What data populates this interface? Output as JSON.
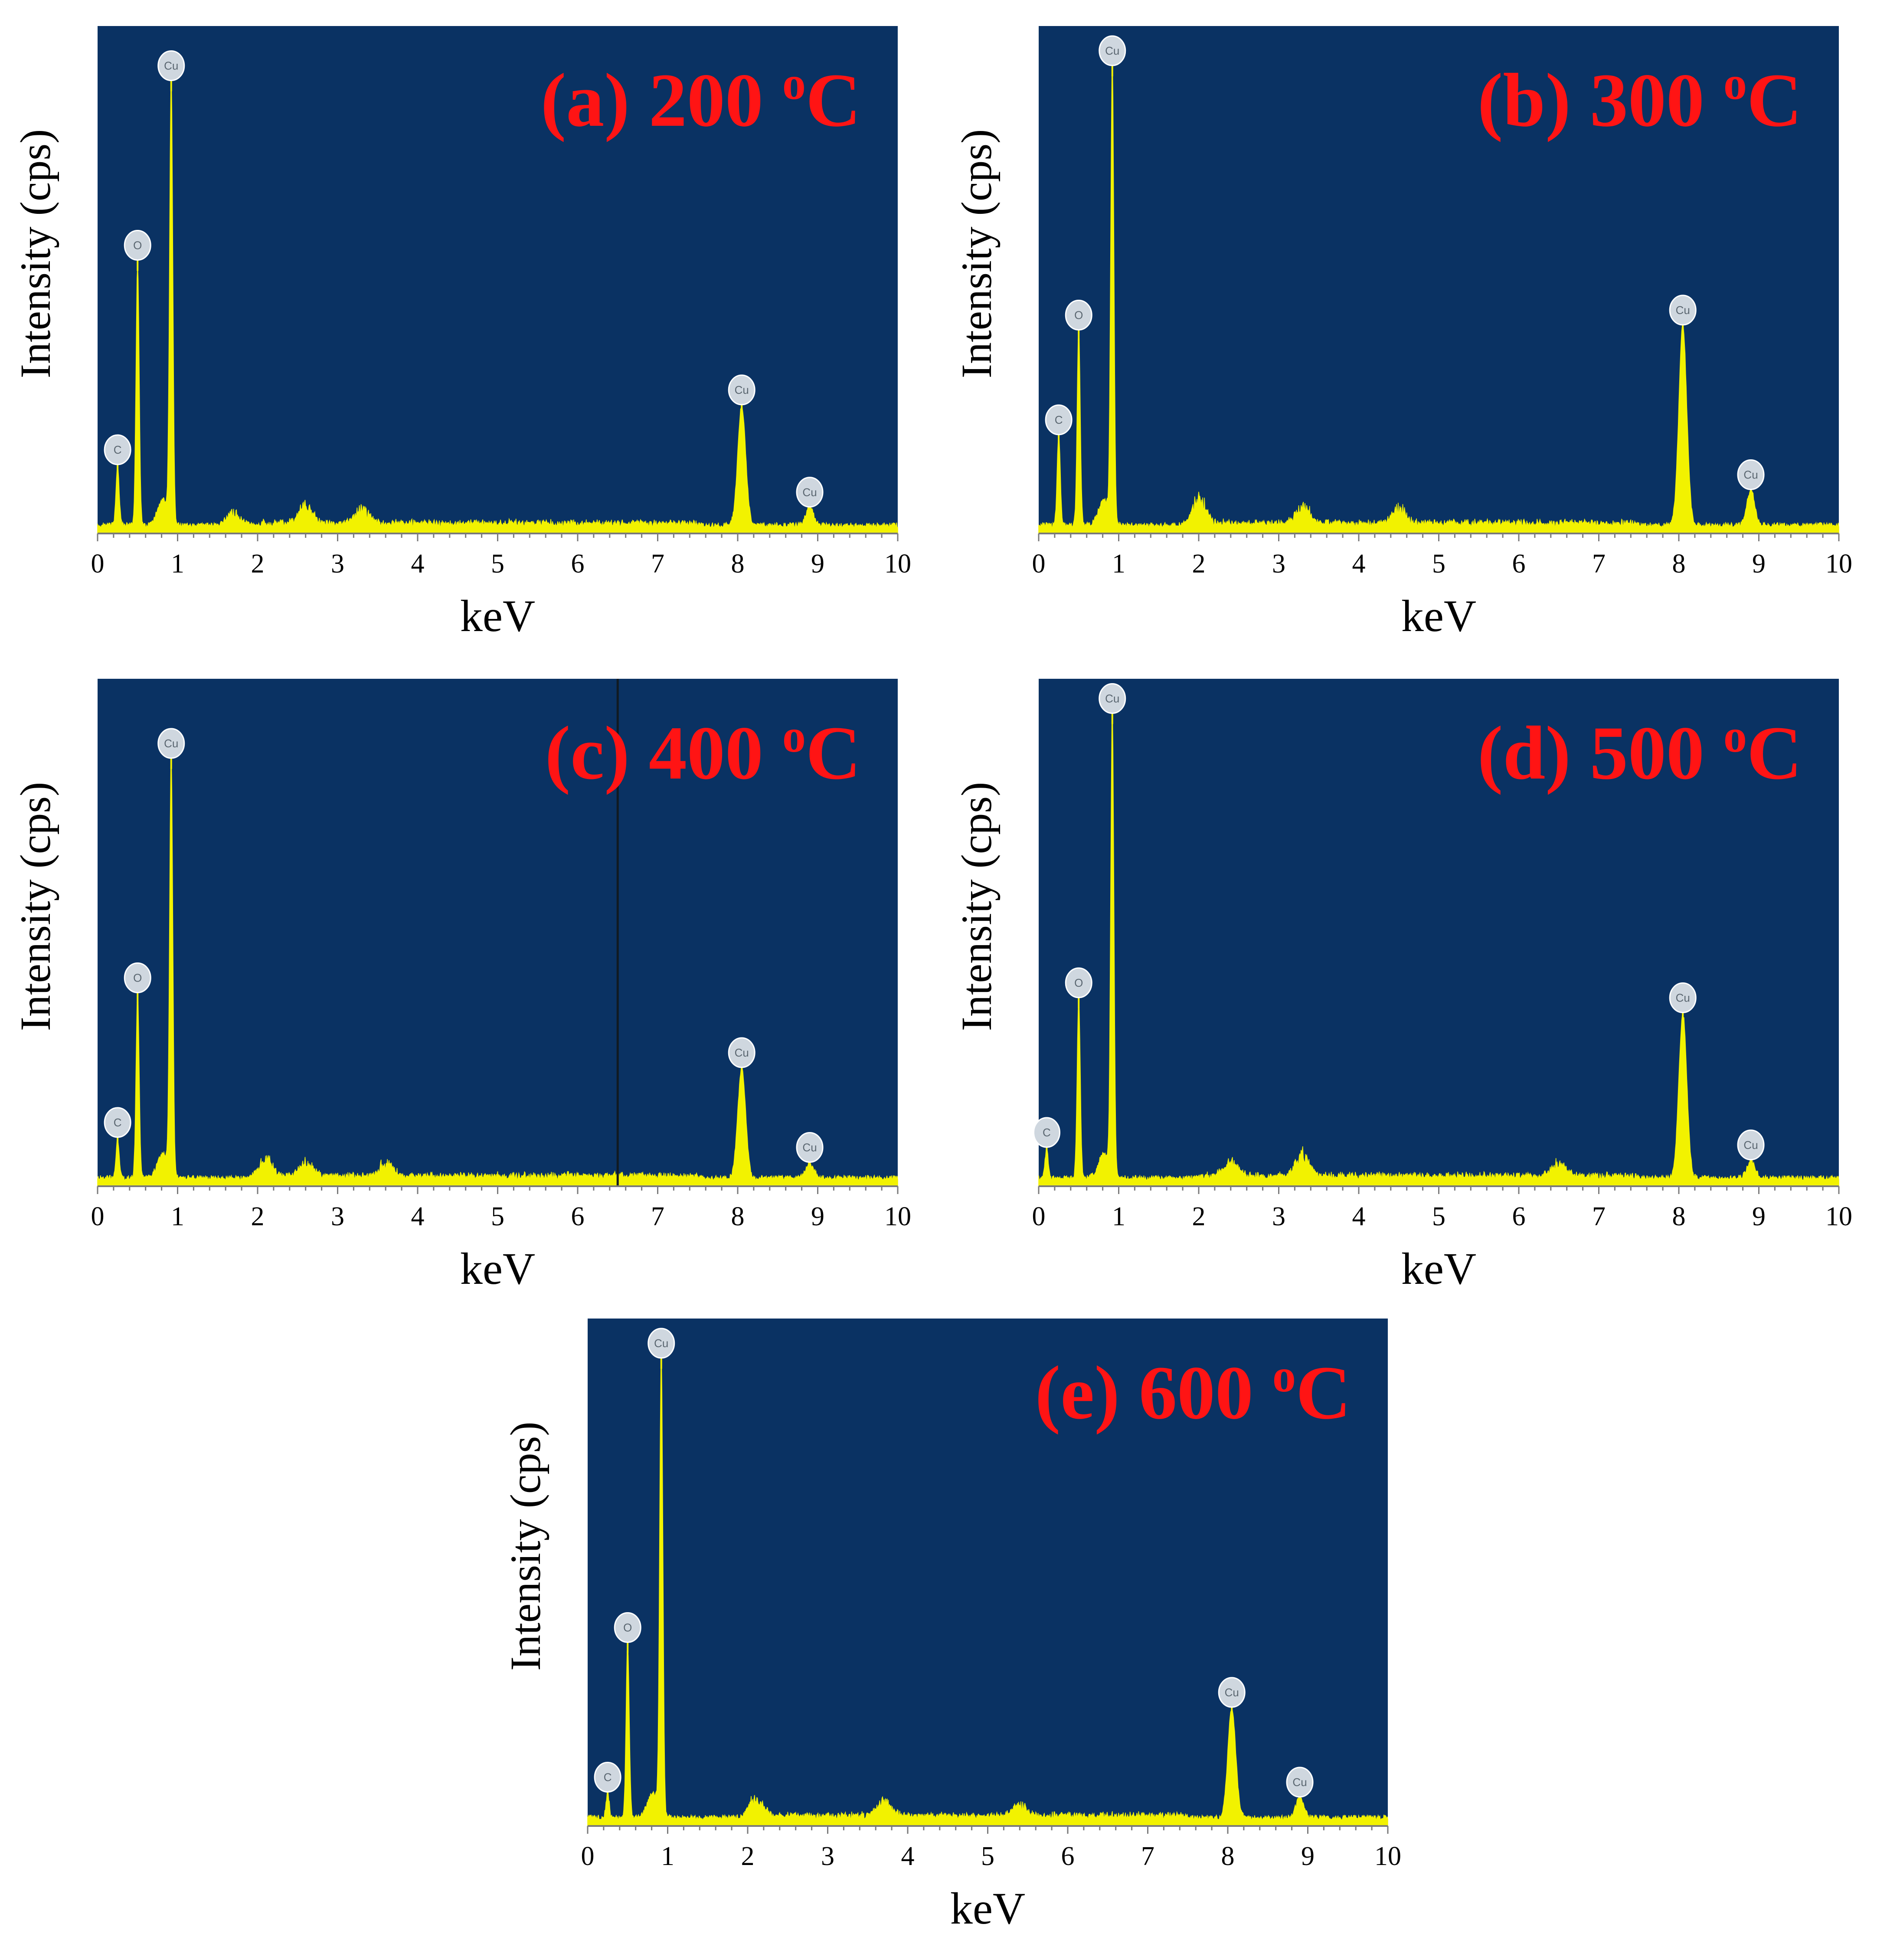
{
  "chart_data": [
    {
      "type": "area",
      "title": "(a) 200 oC",
      "title_main": "(a) 200 ",
      "title_sup": "o",
      "title_unit": "C",
      "xlabel": "keV",
      "ylabel": "Intensity (cps)",
      "xlim": [
        0,
        10
      ],
      "xticks": [
        "0",
        "1",
        "2",
        "3",
        "4",
        "5",
        "6",
        "7",
        "8",
        "9",
        "10"
      ],
      "peaks": [
        {
          "element": "C",
          "x": 0.25,
          "y": 0.12
        },
        {
          "element": "O",
          "x": 0.5,
          "y": 0.53
        },
        {
          "element": "Cu",
          "x": 0.92,
          "y": 0.89
        },
        {
          "element": "Cu",
          "x": 8.05,
          "y": 0.24
        },
        {
          "element": "Cu",
          "x": 8.9,
          "y": 0.035
        }
      ],
      "noise_hump": [
        {
          "x": 1.7,
          "y": 0.03
        },
        {
          "x": 2.6,
          "y": 0.04
        },
        {
          "x": 3.3,
          "y": 0.035
        }
      ],
      "vline": null
    },
    {
      "type": "area",
      "title": "(b) 300 oC",
      "title_main": "(b) 300 ",
      "title_sup": "o",
      "title_unit": "C",
      "xlabel": "keV",
      "ylabel": "Intensity (cps)",
      "xlim": [
        0,
        10
      ],
      "xticks": [
        "0",
        "1",
        "2",
        "3",
        "4",
        "5",
        "6",
        "7",
        "8",
        "9",
        "10"
      ],
      "peaks": [
        {
          "element": "C",
          "x": 0.25,
          "y": 0.18
        },
        {
          "element": "O",
          "x": 0.5,
          "y": 0.39
        },
        {
          "element": "Cu",
          "x": 0.92,
          "y": 0.92
        },
        {
          "element": "Cu",
          "x": 8.05,
          "y": 0.4
        },
        {
          "element": "Cu",
          "x": 8.9,
          "y": 0.07
        }
      ],
      "noise_hump": [
        {
          "x": 2.0,
          "y": 0.06
        },
        {
          "x": 3.3,
          "y": 0.045
        },
        {
          "x": 4.5,
          "y": 0.035
        }
      ],
      "vline": null
    },
    {
      "type": "area",
      "title": "(c) 400 oC",
      "title_main": "(c) 400 ",
      "title_sup": "o",
      "title_unit": "C",
      "xlabel": "keV",
      "ylabel": "Intensity (cps)",
      "xlim": [
        0,
        10
      ],
      "xticks": [
        "0",
        "1",
        "2",
        "3",
        "4",
        "5",
        "6",
        "7",
        "8",
        "9",
        "10"
      ],
      "peaks": [
        {
          "element": "C",
          "x": 0.25,
          "y": 0.08
        },
        {
          "element": "O",
          "x": 0.5,
          "y": 0.37
        },
        {
          "element": "Cu",
          "x": 0.92,
          "y": 0.84
        },
        {
          "element": "Cu",
          "x": 8.05,
          "y": 0.22
        },
        {
          "element": "Cu",
          "x": 8.9,
          "y": 0.03
        }
      ],
      "noise_hump": [
        {
          "x": 2.1,
          "y": 0.04
        },
        {
          "x": 2.6,
          "y": 0.035
        },
        {
          "x": 3.6,
          "y": 0.03
        }
      ],
      "vline": 6.5
    },
    {
      "type": "area",
      "title": "(d) 500 oC",
      "title_main": "(d) 500 ",
      "title_sup": "o",
      "title_unit": "C",
      "xlabel": "keV",
      "ylabel": "Intensity (cps)",
      "xlim": [
        0,
        10
      ],
      "xticks": [
        "0",
        "1",
        "2",
        "3",
        "4",
        "5",
        "6",
        "7",
        "8",
        "9",
        "10"
      ],
      "peaks": [
        {
          "element": "C",
          "x": 0.1,
          "y": 0.06
        },
        {
          "element": "O",
          "x": 0.5,
          "y": 0.36
        },
        {
          "element": "Cu",
          "x": 0.92,
          "y": 0.93
        },
        {
          "element": "Cu",
          "x": 8.05,
          "y": 0.33
        },
        {
          "element": "Cu",
          "x": 8.9,
          "y": 0.035
        }
      ],
      "noise_hump": [
        {
          "x": 2.4,
          "y": 0.035
        },
        {
          "x": 3.3,
          "y": 0.05
        },
        {
          "x": 6.5,
          "y": 0.03
        }
      ],
      "vline": null
    },
    {
      "type": "area",
      "title": "(e) 600 oC",
      "title_main": "(e) 600 ",
      "title_sup": "o",
      "title_unit": "C",
      "xlabel": "keV",
      "ylabel": "Intensity (cps)",
      "xlim": [
        0,
        10
      ],
      "xticks": [
        "0",
        "1",
        "2",
        "3",
        "4",
        "5",
        "6",
        "7",
        "8",
        "9",
        "10"
      ],
      "peaks": [
        {
          "element": "C",
          "x": 0.25,
          "y": 0.05
        },
        {
          "element": "O",
          "x": 0.5,
          "y": 0.35
        },
        {
          "element": "Cu",
          "x": 0.92,
          "y": 0.92
        },
        {
          "element": "Cu",
          "x": 8.05,
          "y": 0.22
        },
        {
          "element": "Cu",
          "x": 8.9,
          "y": 0.04
        }
      ],
      "noise_hump": [
        {
          "x": 2.1,
          "y": 0.04
        },
        {
          "x": 3.7,
          "y": 0.035
        },
        {
          "x": 5.4,
          "y": 0.025
        }
      ],
      "vline": null
    }
  ],
  "colors": {
    "plot_background": "#0a3263",
    "spectrum": "#f2f200",
    "title": "#ff1414",
    "marker": "#cfd7df"
  }
}
